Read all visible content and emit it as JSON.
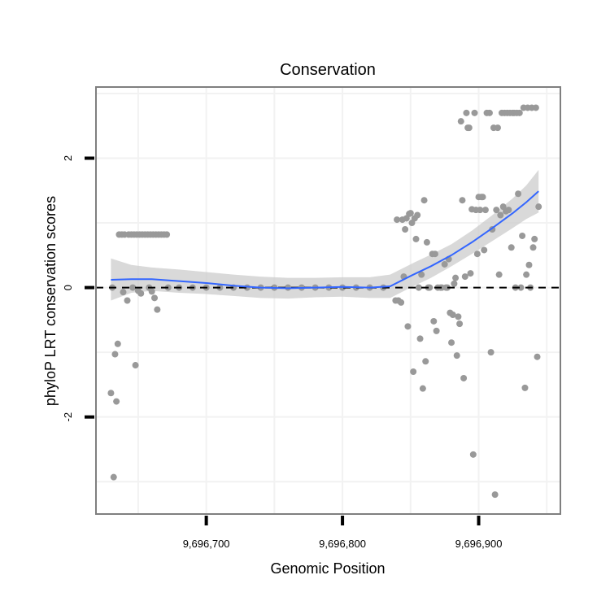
{
  "chart_data": {
    "type": "scatter",
    "title": "Conservation",
    "xlabel": "Genomic Position",
    "ylabel": "phyloP LRT conservation scores",
    "xlim": [
      9696619,
      9696960
    ],
    "ylim": [
      -3.5,
      3.1
    ],
    "x_ticks": [
      9696700,
      9696800,
      9696900
    ],
    "x_tick_labels": [
      "9,696,700",
      "9,696,800",
      "9,696,900"
    ],
    "y_ticks": [
      -2,
      0,
      2
    ],
    "y_tick_labels": [
      "-2",
      "0",
      "2"
    ],
    "grid": true,
    "reference_line": {
      "y": 0,
      "style": "dashed"
    },
    "colors": {
      "points": "#999999",
      "smooth": "#3366ff",
      "ribbon": "#cccccc",
      "panel_border": "#7f7f7f",
      "grid": "#f2f2f2"
    },
    "series": [
      {
        "name": "scores",
        "type": "scatter",
        "points": [
          {
            "x": 9696630,
            "y": -1.63
          },
          {
            "x": 9696631,
            "y": 0.0
          },
          {
            "x": 9696632,
            "y": -2.93
          },
          {
            "x": 9696633,
            "y": -1.03
          },
          {
            "x": 9696634,
            "y": -1.76
          },
          {
            "x": 9696635,
            "y": -0.87
          },
          {
            "x": 9696636,
            "y": 0.82
          },
          {
            "x": 9696638,
            "y": 0.82
          },
          {
            "x": 9696639,
            "y": -0.07
          },
          {
            "x": 9696640,
            "y": 0.82
          },
          {
            "x": 9696642,
            "y": -0.2
          },
          {
            "x": 9696643,
            "y": 0.82
          },
          {
            "x": 9696645,
            "y": 0.82
          },
          {
            "x": 9696646,
            "y": 0.0
          },
          {
            "x": 9696647,
            "y": 0.82
          },
          {
            "x": 9696648,
            "y": -1.2
          },
          {
            "x": 9696649,
            "y": 0.82
          },
          {
            "x": 9696650,
            "y": -0.05
          },
          {
            "x": 9696651,
            "y": 0.82
          },
          {
            "x": 9696652,
            "y": -0.09
          },
          {
            "x": 9696653,
            "y": 0.82
          },
          {
            "x": 9696655,
            "y": 0.82
          },
          {
            "x": 9696657,
            "y": 0.82
          },
          {
            "x": 9696658,
            "y": 0.0
          },
          {
            "x": 9696659,
            "y": 0.82
          },
          {
            "x": 9696660,
            "y": -0.06
          },
          {
            "x": 9696661,
            "y": 0.82
          },
          {
            "x": 9696662,
            "y": -0.16
          },
          {
            "x": 9696663,
            "y": 0.82
          },
          {
            "x": 9696664,
            "y": -0.34
          },
          {
            "x": 9696665,
            "y": 0.82
          },
          {
            "x": 9696667,
            "y": 0.82
          },
          {
            "x": 9696669,
            "y": 0.82
          },
          {
            "x": 9696671,
            "y": 0.82
          },
          {
            "x": 9696672,
            "y": 0.0
          },
          {
            "x": 9696680,
            "y": 0.0
          },
          {
            "x": 9696690,
            "y": 0.0
          },
          {
            "x": 9696700,
            "y": 0.0
          },
          {
            "x": 9696710,
            "y": 0.0
          },
          {
            "x": 9696720,
            "y": 0.0
          },
          {
            "x": 9696730,
            "y": 0.0
          },
          {
            "x": 9696740,
            "y": 0.0
          },
          {
            "x": 9696750,
            "y": 0.0
          },
          {
            "x": 9696760,
            "y": 0.0
          },
          {
            "x": 9696770,
            "y": 0.0
          },
          {
            "x": 9696780,
            "y": 0.0
          },
          {
            "x": 9696790,
            "y": 0.0
          },
          {
            "x": 9696800,
            "y": 0.0
          },
          {
            "x": 9696810,
            "y": 0.0
          },
          {
            "x": 9696820,
            "y": 0.0
          },
          {
            "x": 9696830,
            "y": 0.0
          },
          {
            "x": 9696839,
            "y": -0.2
          },
          {
            "x": 9696840,
            "y": 1.05
          },
          {
            "x": 9696841,
            "y": -0.2
          },
          {
            "x": 9696843,
            "y": -0.23
          },
          {
            "x": 9696844,
            "y": 1.05
          },
          {
            "x": 9696845,
            "y": 0.17
          },
          {
            "x": 9696846,
            "y": 0.9
          },
          {
            "x": 9696847,
            "y": 1.07
          },
          {
            "x": 9696848,
            "y": -0.6
          },
          {
            "x": 9696849,
            "y": 1.14
          },
          {
            "x": 9696850,
            "y": 1.15
          },
          {
            "x": 9696851,
            "y": 1.0
          },
          {
            "x": 9696852,
            "y": -1.3
          },
          {
            "x": 9696853,
            "y": 1.07
          },
          {
            "x": 9696854,
            "y": 0.75
          },
          {
            "x": 9696855,
            "y": 1.12
          },
          {
            "x": 9696856,
            "y": 0.0
          },
          {
            "x": 9696857,
            "y": -0.79
          },
          {
            "x": 9696858,
            "y": 0.2
          },
          {
            "x": 9696859,
            "y": -1.56
          },
          {
            "x": 9696860,
            "y": 1.35
          },
          {
            "x": 9696861,
            "y": -1.14
          },
          {
            "x": 9696862,
            "y": 0.7
          },
          {
            "x": 9696863,
            "y": 0.0
          },
          {
            "x": 9696864,
            "y": 0.0
          },
          {
            "x": 9696866,
            "y": 0.52
          },
          {
            "x": 9696867,
            "y": -0.52
          },
          {
            "x": 9696868,
            "y": 0.52
          },
          {
            "x": 9696869,
            "y": -0.67
          },
          {
            "x": 9696870,
            "y": 0.0
          },
          {
            "x": 9696872,
            "y": 0.0
          },
          {
            "x": 9696873,
            "y": 0.0
          },
          {
            "x": 9696875,
            "y": 0.36
          },
          {
            "x": 9696876,
            "y": 0.0
          },
          {
            "x": 9696877,
            "y": 0.0
          },
          {
            "x": 9696878,
            "y": 0.44
          },
          {
            "x": 9696879,
            "y": -0.39
          },
          {
            "x": 9696880,
            "y": -0.85
          },
          {
            "x": 9696881,
            "y": -0.42
          },
          {
            "x": 9696882,
            "y": 0.06
          },
          {
            "x": 9696883,
            "y": 0.15
          },
          {
            "x": 9696884,
            "y": -1.05
          },
          {
            "x": 9696885,
            "y": -0.45
          },
          {
            "x": 9696886,
            "y": -0.56
          },
          {
            "x": 9696887,
            "y": 2.57
          },
          {
            "x": 9696888,
            "y": 1.35
          },
          {
            "x": 9696889,
            "y": -1.4
          },
          {
            "x": 9696890,
            "y": 0.17
          },
          {
            "x": 9696891,
            "y": 2.7
          },
          {
            "x": 9696892,
            "y": 2.47
          },
          {
            "x": 9696893,
            "y": 2.47
          },
          {
            "x": 9696894,
            "y": 0.22
          },
          {
            "x": 9696895,
            "y": 1.21
          },
          {
            "x": 9696896,
            "y": -2.58
          },
          {
            "x": 9696897,
            "y": 2.7
          },
          {
            "x": 9696898,
            "y": 1.2
          },
          {
            "x": 9696899,
            "y": 0.52
          },
          {
            "x": 9696900,
            "y": 1.4
          },
          {
            "x": 9696901,
            "y": 1.2
          },
          {
            "x": 9696902,
            "y": 1.4
          },
          {
            "x": 9696903,
            "y": 1.4
          },
          {
            "x": 9696904,
            "y": 0.58
          },
          {
            "x": 9696905,
            "y": 1.2
          },
          {
            "x": 9696906,
            "y": 2.7
          },
          {
            "x": 9696908,
            "y": 2.7
          },
          {
            "x": 9696909,
            "y": -1.0
          },
          {
            "x": 9696910,
            "y": 0.9
          },
          {
            "x": 9696911,
            "y": 2.47
          },
          {
            "x": 9696912,
            "y": -3.2
          },
          {
            "x": 9696913,
            "y": 1.2
          },
          {
            "x": 9696914,
            "y": 2.47
          },
          {
            "x": 9696915,
            "y": 0.2
          },
          {
            "x": 9696916,
            "y": 1.12
          },
          {
            "x": 9696917,
            "y": 2.7
          },
          {
            "x": 9696918,
            "y": 1.25
          },
          {
            "x": 9696919,
            "y": 2.7
          },
          {
            "x": 9696920,
            "y": 1.18
          },
          {
            "x": 9696921,
            "y": 2.7
          },
          {
            "x": 9696922,
            "y": 1.2
          },
          {
            "x": 9696923,
            "y": 2.7
          },
          {
            "x": 9696924,
            "y": 0.62
          },
          {
            "x": 9696925,
            "y": 2.7
          },
          {
            "x": 9696926,
            "y": 2.7
          },
          {
            "x": 9696927,
            "y": 0.0
          },
          {
            "x": 9696928,
            "y": 2.7
          },
          {
            "x": 9696929,
            "y": 1.45
          },
          {
            "x": 9696930,
            "y": 2.7
          },
          {
            "x": 9696931,
            "y": 0.0
          },
          {
            "x": 9696932,
            "y": 0.8
          },
          {
            "x": 9696933,
            "y": 2.78
          },
          {
            "x": 9696934,
            "y": -1.55
          },
          {
            "x": 9696935,
            "y": 0.2
          },
          {
            "x": 9696936,
            "y": 2.78
          },
          {
            "x": 9696937,
            "y": 0.35
          },
          {
            "x": 9696938,
            "y": 0.0
          },
          {
            "x": 9696939,
            "y": 2.78
          },
          {
            "x": 9696940,
            "y": 0.62
          },
          {
            "x": 9696941,
            "y": 0.75
          },
          {
            "x": 9696942,
            "y": 2.78
          },
          {
            "x": 9696943,
            "y": -1.07
          },
          {
            "x": 9696944,
            "y": 1.25
          }
        ]
      },
      {
        "name": "smooth fit",
        "type": "line",
        "points": [
          {
            "x": 9696630,
            "y": 0.12
          },
          {
            "x": 9696645,
            "y": 0.13
          },
          {
            "x": 9696660,
            "y": 0.13
          },
          {
            "x": 9696680,
            "y": 0.1
          },
          {
            "x": 9696700,
            "y": 0.07
          },
          {
            "x": 9696720,
            "y": 0.03
          },
          {
            "x": 9696740,
            "y": 0.0
          },
          {
            "x": 9696760,
            "y": -0.01
          },
          {
            "x": 9696780,
            "y": 0.0
          },
          {
            "x": 9696800,
            "y": 0.01
          },
          {
            "x": 9696820,
            "y": 0.0
          },
          {
            "x": 9696835,
            "y": 0.02
          },
          {
            "x": 9696850,
            "y": 0.18
          },
          {
            "x": 9696865,
            "y": 0.33
          },
          {
            "x": 9696880,
            "y": 0.5
          },
          {
            "x": 9696895,
            "y": 0.7
          },
          {
            "x": 9696910,
            "y": 0.92
          },
          {
            "x": 9696925,
            "y": 1.15
          },
          {
            "x": 9696935,
            "y": 1.32
          },
          {
            "x": 9696944,
            "y": 1.49
          }
        ],
        "ribbon_upper": [
          0.45,
          0.35,
          0.31,
          0.28,
          0.24,
          0.2,
          0.17,
          0.15,
          0.15,
          0.16,
          0.16,
          0.2,
          0.36,
          0.51,
          0.67,
          0.88,
          1.12,
          1.38,
          1.58,
          1.82
        ],
        "ribbon_lower": [
          -0.2,
          -0.08,
          -0.05,
          -0.08,
          -0.1,
          -0.13,
          -0.16,
          -0.17,
          -0.15,
          -0.14,
          -0.16,
          -0.16,
          0.0,
          0.15,
          0.33,
          0.52,
          0.72,
          0.92,
          1.06,
          1.16
        ]
      }
    ]
  }
}
